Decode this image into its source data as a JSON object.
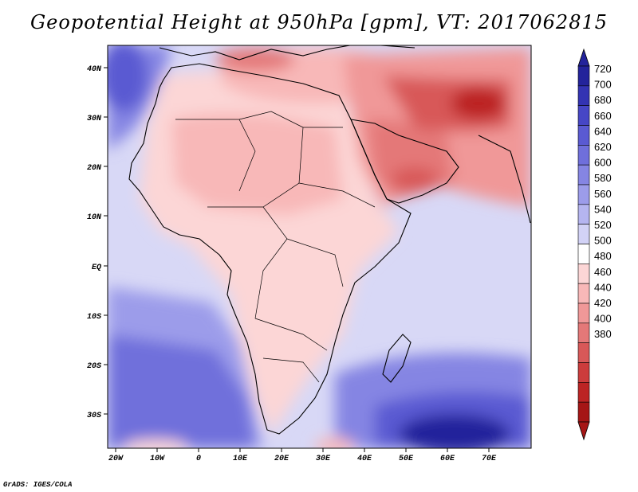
{
  "title": "Geopotential Height at 950hPa [gpm], VT: 2017062815",
  "footer": "GrADS: IGES/COLA",
  "map": {
    "projection": "latlon",
    "lon_range": [
      -22,
      80
    ],
    "lat_range": [
      -37,
      45
    ],
    "x_ticks": [
      "20W",
      "10W",
      "0",
      "10E",
      "20E",
      "30E",
      "40E",
      "50E",
      "60E",
      "70E"
    ],
    "y_ticks": [
      "40N",
      "30N",
      "20N",
      "10N",
      "EQ",
      "10S",
      "20S",
      "30S"
    ],
    "x_tick_values": [
      -20,
      -10,
      0,
      10,
      20,
      30,
      40,
      50,
      60,
      70
    ],
    "y_tick_values": [
      40,
      30,
      20,
      10,
      0,
      -10,
      -20,
      -30
    ]
  },
  "colorbar": {
    "labels": [
      "720",
      "700",
      "680",
      "660",
      "640",
      "620",
      "600",
      "580",
      "560",
      "540",
      "520",
      "500",
      "480",
      "460",
      "440",
      "420",
      "400",
      "380"
    ],
    "colors": [
      "#23239b",
      "#3333b3",
      "#4646c6",
      "#5a5ad2",
      "#6f6fdb",
      "#8585e3",
      "#9c9cea",
      "#b5b5f0",
      "#d2d2f6",
      "#ffffff",
      "#fcd6d6",
      "#f8b8b8",
      "#f09898",
      "#e47878",
      "#d85858",
      "#cc3c3c",
      "#bc2424",
      "#a51616"
    ]
  },
  "colors": {
    "low": "#a51616",
    "high": "#23239b",
    "land_mid": "#fcd6d6"
  }
}
